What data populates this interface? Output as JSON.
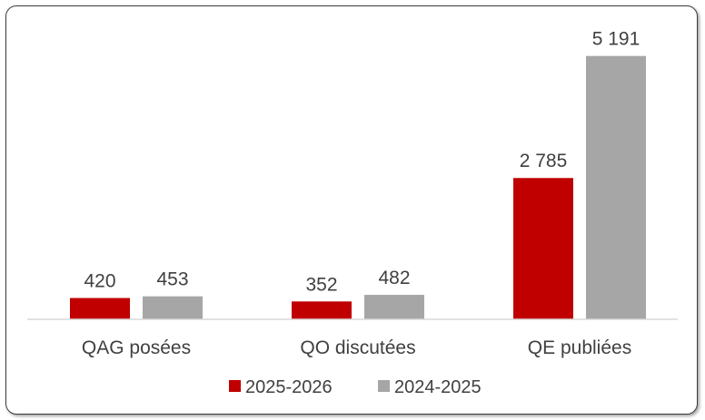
{
  "chart_data": {
    "type": "bar",
    "categories": [
      "QAG posées",
      "QO discutées",
      "QE publiées"
    ],
    "series": [
      {
        "name": "2025-2026",
        "color": "#c00000",
        "values": [
          420,
          352,
          2785
        ],
        "labels": [
          "420",
          "352",
          "2 785"
        ]
      },
      {
        "name": "2024-2025",
        "color": "#a6a6a6",
        "values": [
          453,
          482,
          5191
        ],
        "labels": [
          "453",
          "482",
          "5 191"
        ]
      }
    ],
    "title": "",
    "xlabel": "",
    "ylabel": "",
    "ylim": [
      0,
      5400
    ],
    "grid": false,
    "legend": "bottom"
  }
}
